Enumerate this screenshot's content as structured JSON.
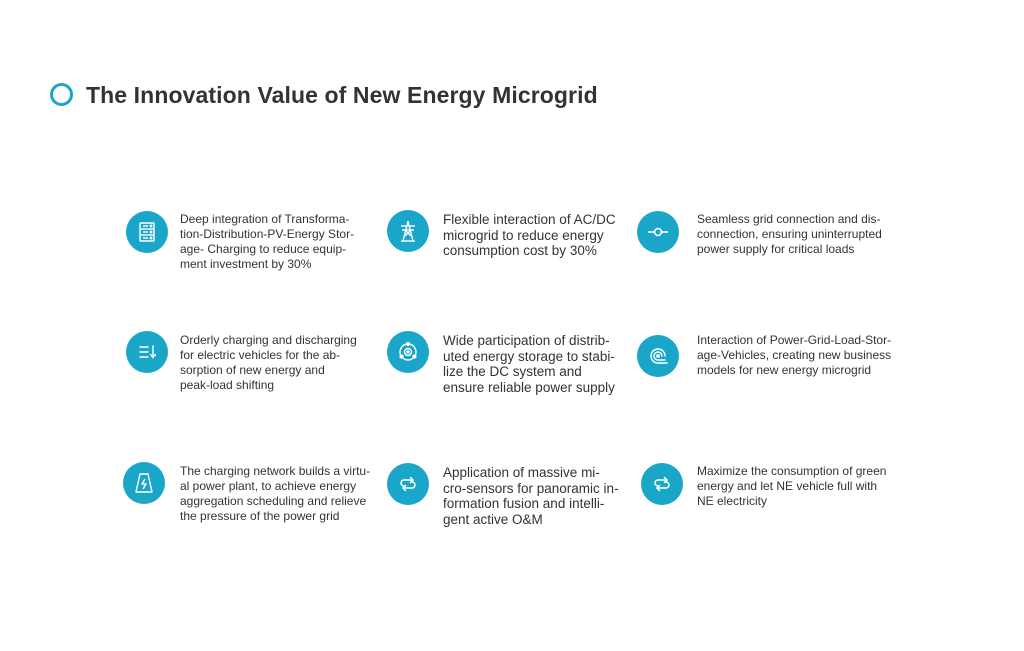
{
  "page": {
    "title": "The Innovation Value of New Energy Microgrid"
  },
  "theme": {
    "accent": "#1aa6c8",
    "text": "#333333"
  },
  "items": [
    {
      "icon": "server-rack-icon",
      "text": "Deep integration of Transforma-\ntion-Distribution-PV-Energy Stor-\nage- Charging to reduce equip-\nment investment by 30%"
    },
    {
      "icon": "transmission-tower-icon",
      "text": "Flexible interaction of AC/DC\nmicrogrid to reduce energy\nconsumption cost by 30%"
    },
    {
      "icon": "grid-switch-icon",
      "text": "Seamless grid connection and dis-\nconnection, ensuring uninterrupted\npower supply for critical loads"
    },
    {
      "icon": "charging-list-icon",
      "text": "Orderly charging and discharging\nfor electric vehicles for the ab-\nsorption of new energy and\npeak-load shifting"
    },
    {
      "icon": "storage-target-icon",
      "text": "Wide participation of distrib-\nuted energy storage to stabi-\nlize the DC system and\nensure reliable power supply"
    },
    {
      "icon": "interaction-wave-icon",
      "text": "Interaction of Power-Grid-Load-Stor-\nage-Vehicles, creating new business\nmodels for new energy microgrid"
    },
    {
      "icon": "power-plant-icon",
      "text": "The charging network builds a virtu-\nal power plant, to achieve energy\naggregation scheduling and relieve\nthe pressure of the power grid"
    },
    {
      "icon": "swap-arrows-icon",
      "text": "Application of massive mi-\ncro-sensors for panoramic in-\nformation fusion and intelli-\ngent active O&M"
    },
    {
      "icon": "swap-arrows-icon",
      "text": "Maximize the consumption of green\nenergy and let NE vehicle full with\nNE electricity"
    }
  ]
}
